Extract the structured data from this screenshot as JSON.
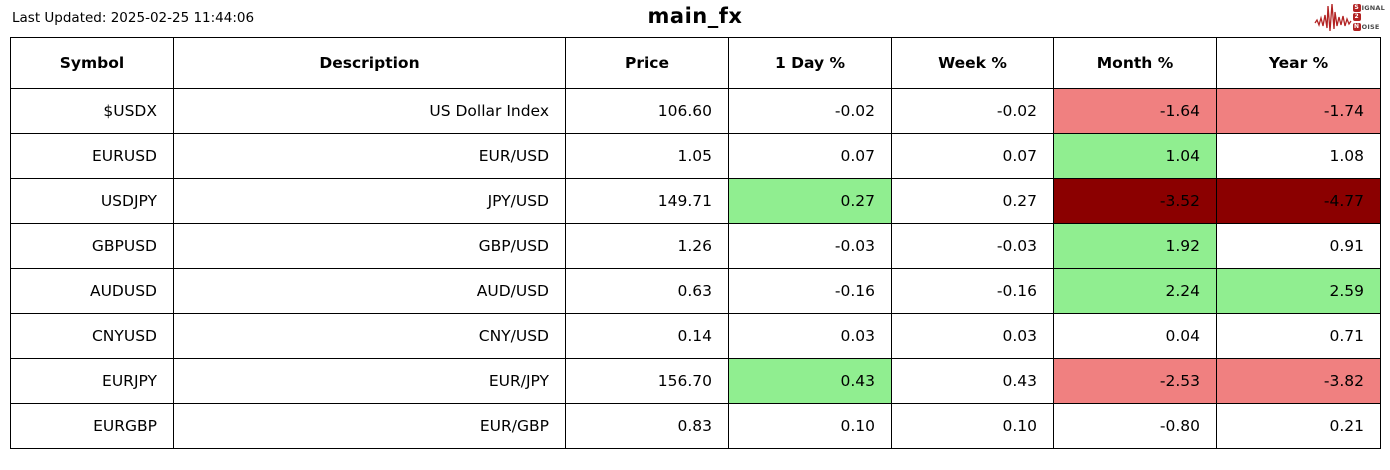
{
  "header": {
    "last_updated": "Last Updated: 2025-02-25 11:44:06",
    "title": "main_fx",
    "logo": {
      "signal_initial": "S",
      "signal_rest": "IGNAL",
      "two": "2",
      "noise_initial": "N",
      "noise_rest": "OISE"
    }
  },
  "colors": {
    "positive": "#90EE90",
    "negative": "#F08080",
    "strong_negative": "#8B0000",
    "logo_red": "#B22222",
    "border": "#000000"
  },
  "chart_data": {
    "type": "table",
    "title": "main_fx",
    "columns": [
      "Symbol",
      "Description",
      "Price",
      "1 Day %",
      "Week %",
      "Month %",
      "Year %"
    ],
    "column_keys": [
      "symbol",
      "description",
      "price",
      "1-day-pct",
      "week-pct",
      "month-pct",
      "year-pct"
    ],
    "rows": [
      {
        "cells": [
          "$USDX",
          "US Dollar Index",
          "106.60",
          "-0.02",
          "-0.02",
          "-1.64",
          "-1.74"
        ],
        "cell_colors": [
          null,
          null,
          null,
          null,
          null,
          "negative",
          "negative"
        ]
      },
      {
        "cells": [
          "EURUSD",
          "EUR/USD",
          "1.05",
          "0.07",
          "0.07",
          "1.04",
          "1.08"
        ],
        "cell_colors": [
          null,
          null,
          null,
          null,
          null,
          "positive",
          null
        ]
      },
      {
        "cells": [
          "USDJPY",
          "JPY/USD",
          "149.71",
          "0.27",
          "0.27",
          "-3.52",
          "-4.77"
        ],
        "cell_colors": [
          null,
          null,
          null,
          "positive",
          null,
          "strong_negative",
          "strong_negative"
        ]
      },
      {
        "cells": [
          "GBPUSD",
          "GBP/USD",
          "1.26",
          "-0.03",
          "-0.03",
          "1.92",
          "0.91"
        ],
        "cell_colors": [
          null,
          null,
          null,
          null,
          null,
          "positive",
          null
        ]
      },
      {
        "cells": [
          "AUDUSD",
          "AUD/USD",
          "0.63",
          "-0.16",
          "-0.16",
          "2.24",
          "2.59"
        ],
        "cell_colors": [
          null,
          null,
          null,
          null,
          null,
          "positive",
          "positive"
        ]
      },
      {
        "cells": [
          "CNYUSD",
          "CNY/USD",
          "0.14",
          "0.03",
          "0.03",
          "0.04",
          "0.71"
        ],
        "cell_colors": [
          null,
          null,
          null,
          null,
          null,
          null,
          null
        ]
      },
      {
        "cells": [
          "EURJPY",
          "EUR/JPY",
          "156.70",
          "0.43",
          "0.43",
          "-2.53",
          "-3.82"
        ],
        "cell_colors": [
          null,
          null,
          null,
          "positive",
          null,
          "negative",
          "negative"
        ]
      },
      {
        "cells": [
          "EURGBP",
          "EUR/GBP",
          "0.83",
          "0.10",
          "0.10",
          "-0.80",
          "0.21"
        ],
        "cell_colors": [
          null,
          null,
          null,
          null,
          null,
          null,
          null
        ]
      }
    ]
  }
}
